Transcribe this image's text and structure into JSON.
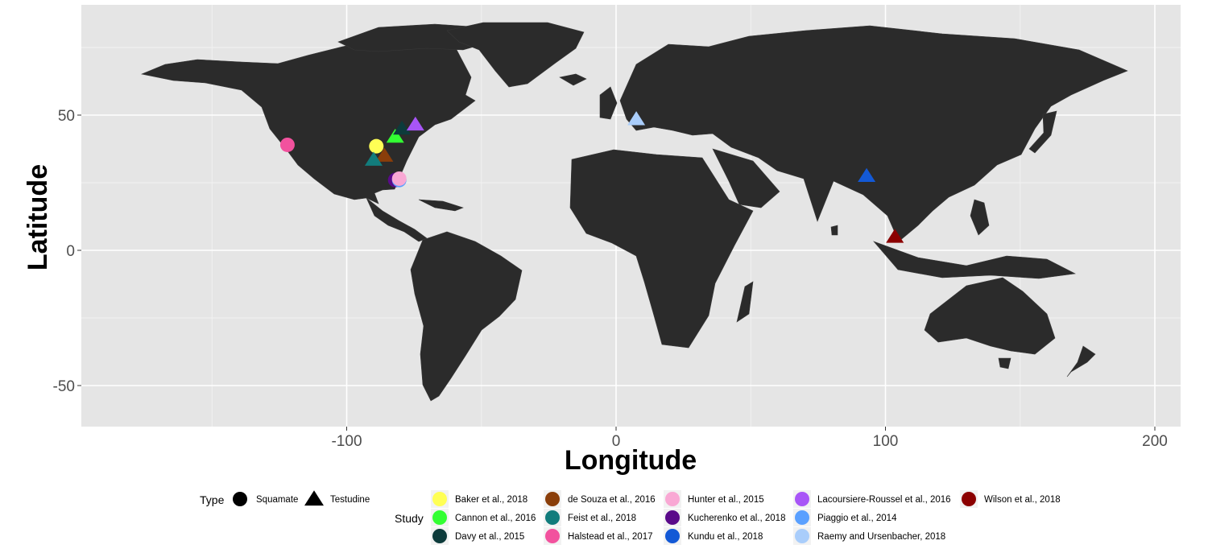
{
  "chart_data": {
    "type": "scatter",
    "subtype": "world-map-points",
    "xlabel": "Longitude",
    "ylabel": "Latitude",
    "xlim": [
      -200,
      210
    ],
    "ylim": [
      -65,
      92
    ],
    "x_ticks": [
      -100,
      0,
      100,
      200
    ],
    "y_ticks": [
      -50,
      0,
      50
    ],
    "grid": true,
    "legend_position": "bottom",
    "colors": {
      "panel": "#e5e5e5",
      "land": "#2b2b2b",
      "grid": "#ffffff"
    },
    "points": [
      {
        "study": "Halstead et al., 2017",
        "type": "Squamate",
        "x": -122,
        "y": 39,
        "color": "#f2529e"
      },
      {
        "study": "Baker et al., 2018",
        "type": "Squamate",
        "x": -89,
        "y": 38.5,
        "color": "#ffff55"
      },
      {
        "study": "Cannon et al., 2016",
        "type": "Testudine",
        "x": -82,
        "y": 42,
        "color": "#33ff33"
      },
      {
        "study": "Davy et al., 2015",
        "type": "Testudine",
        "x": -79.5,
        "y": 45,
        "color": "#0d3b3b"
      },
      {
        "study": "Lacoursiere-Roussel et al., 2016",
        "type": "Testudine",
        "x": -74.5,
        "y": 46.5,
        "color": "#a855f7"
      },
      {
        "study": "de Souza et al., 2016",
        "type": "Testudine",
        "x": -86,
        "y": 35,
        "color": "#8a3e0a"
      },
      {
        "study": "Feist et al., 2018",
        "type": "Testudine",
        "x": -90,
        "y": 33.5,
        "color": "#127c7c"
      },
      {
        "study": "Kucherenko et al., 2018",
        "type": "Squamate",
        "x": -82,
        "y": 26,
        "color": "#5a0a8a"
      },
      {
        "study": "Piaggio et al., 2014",
        "type": "Squamate",
        "x": -80.5,
        "y": 26,
        "color": "#5aa0ff"
      },
      {
        "study": "Hunter et al., 2015",
        "type": "Squamate",
        "x": -80.5,
        "y": 26.5,
        "color": "#f9a8d4"
      },
      {
        "study": "Raemy and Ursenbacher, 2018",
        "type": "Testudine",
        "x": 7.5,
        "y": 48.5,
        "color": "#a9cdfb"
      },
      {
        "study": "Kundu et al., 2018",
        "type": "Testudine",
        "x": 93,
        "y": 27.5,
        "color": "#1359d6"
      },
      {
        "study": "Wilson et al., 2018",
        "type": "Testudine",
        "x": 103.5,
        "y": 5,
        "color": "#8b0000"
      }
    ],
    "legend": {
      "type_title": "Type",
      "type_items": [
        {
          "label": "Squamate",
          "shape": "circle"
        },
        {
          "label": "Testudine",
          "shape": "triangle"
        }
      ],
      "study_title": "Study",
      "study_items": [
        {
          "label": "Baker et al., 2018",
          "color": "#ffff55"
        },
        {
          "label": "Cannon et al., 2016",
          "color": "#33ff33"
        },
        {
          "label": "Davy et al., 2015",
          "color": "#0d3b3b"
        },
        {
          "label": "de Souza et al., 2016",
          "color": "#8a3e0a"
        },
        {
          "label": "Feist et al., 2018",
          "color": "#127c7c"
        },
        {
          "label": "Halstead et al., 2017",
          "color": "#f2529e"
        },
        {
          "label": "Hunter et al., 2015",
          "color": "#f9a8d4"
        },
        {
          "label": "Kucherenko et al., 2018",
          "color": "#5a0a8a"
        },
        {
          "label": "Kundu et al., 2018",
          "color": "#1359d6"
        },
        {
          "label": "Lacoursiere-Roussel et al., 2016",
          "color": "#a855f7"
        },
        {
          "label": "Piaggio et al., 2014",
          "color": "#5aa0ff"
        },
        {
          "label": "Raemy and Ursenbacher, 2018",
          "color": "#a9cdfb"
        },
        {
          "label": "Wilson et al., 2018",
          "color": "#8b0000"
        }
      ]
    }
  }
}
